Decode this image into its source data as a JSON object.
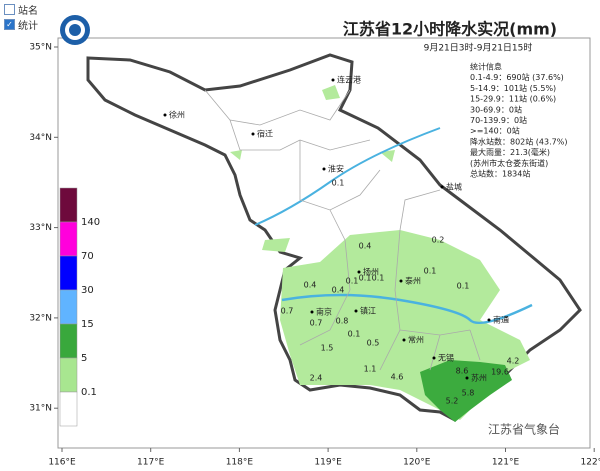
{
  "checkboxes": [
    {
      "label": "站名",
      "checked": false
    },
    {
      "label": "统计",
      "checked": true
    }
  ],
  "title": "江苏省12小时降水实况(mm)",
  "subtitle": "9月21日3时-9月21日15时",
  "stats": [
    "统计信息",
    "0.1-4.9：690站 (37.6%)",
    "5-14.9：101站 (5.5%)",
    "15-29.9：11站 (0.6%)",
    "30-69.9：0站",
    "70-139.9：0站",
    ">=140：0站",
    "降水站数：802站 (43.7%)",
    "最大雨量：21.3(毫米)",
    "(苏州市太仓娄东街道)",
    "总站数：1834站"
  ],
  "legend": {
    "thresholds": [
      140,
      70,
      30,
      15,
      5,
      0.1
    ],
    "colors": [
      "#6e0a3c",
      "#ff00dc",
      "#0000ff",
      "#60b4ff",
      "#39a83c",
      "#a8e690",
      "#ffffff"
    ]
  },
  "axes": {
    "lon": [
      {
        "value": 116,
        "label": "116°E"
      },
      {
        "value": 117,
        "label": "117°E"
      },
      {
        "value": 118,
        "label": "118°E"
      },
      {
        "value": 119,
        "label": "119°E"
      },
      {
        "value": 120,
        "label": "120°E"
      },
      {
        "value": 121,
        "label": "121°E"
      },
      {
        "value": 122,
        "label": "122°E"
      }
    ],
    "lat": [
      {
        "value": 35,
        "label": "35°N"
      },
      {
        "value": 34,
        "label": "34°N"
      },
      {
        "value": 33,
        "label": "33°N"
      },
      {
        "value": 32,
        "label": "32°N"
      },
      {
        "value": 31,
        "label": "31°N"
      }
    ]
  },
  "cities": [
    "徐州",
    "宿迁",
    "连云港",
    "淮安",
    "盐城",
    "扬州",
    "泰州",
    "南京",
    "镇江",
    "常州",
    "南通",
    "无锡",
    "苏州"
  ],
  "values": [
    0.1,
    0.4,
    0.2,
    0.1,
    0.4,
    0.4,
    0.1,
    0.1,
    0.1,
    0.1,
    0.7,
    0.7,
    0.8,
    0.1,
    1.5,
    0.5,
    1.1,
    4.6,
    2.4,
    8.6,
    4.2,
    19.6,
    5.2,
    5.8
  ],
  "footer": "江苏省气象台"
}
